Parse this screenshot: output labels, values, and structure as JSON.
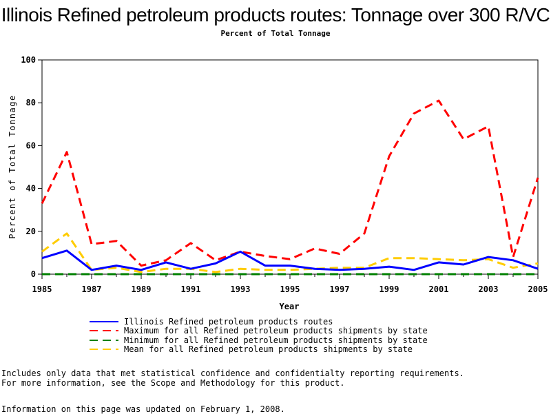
{
  "chart_data": {
    "type": "line",
    "title": "Illinois Refined petroleum products routes: Tonnage over 300 R/VC",
    "subtitle": "Percent of Total Tonnage",
    "xlabel": "Year",
    "ylabel": "Percent of Total Tonnage",
    "xlim": [
      1985,
      2005
    ],
    "ylim": [
      0,
      100
    ],
    "x_ticks": [
      1985,
      1987,
      1989,
      1991,
      1993,
      1995,
      1997,
      1999,
      2001,
      2003,
      2005
    ],
    "y_ticks": [
      0,
      20,
      40,
      60,
      80,
      100
    ],
    "grid": false,
    "legend_position": "bottom",
    "x": [
      1985,
      1986,
      1987,
      1988,
      1989,
      1990,
      1991,
      1992,
      1993,
      1994,
      1995,
      1996,
      1997,
      1998,
      1999,
      2000,
      2001,
      2002,
      2003,
      2004,
      2005
    ],
    "series": [
      {
        "name": "Illinois Refined petroleum products routes",
        "color": "#0000ff",
        "style": "solid",
        "values": [
          7.5,
          11,
          2,
          4,
          2,
          5.5,
          2.5,
          5,
          10.5,
          4,
          4,
          2.5,
          2,
          2.5,
          3.5,
          2,
          5.5,
          4.5,
          8,
          6.5,
          2.5
        ]
      },
      {
        "name": "Maximum for all Refined petroleum products shipments by state",
        "color": "#ff0000",
        "style": "dashed",
        "values": [
          33,
          57,
          14,
          15.5,
          4,
          6.5,
          14.5,
          6.5,
          10.5,
          8.5,
          7,
          12,
          9.5,
          19,
          55,
          75,
          81,
          63,
          69,
          8,
          45
        ]
      },
      {
        "name": "Minimum for all Refined petroleum products shipments by state",
        "color": "#008000",
        "style": "dashed",
        "values": [
          0,
          0,
          0,
          0,
          0,
          0,
          0,
          0,
          0,
          0,
          0,
          0,
          0,
          0,
          0,
          0,
          0,
          0,
          0,
          0,
          0
        ]
      },
      {
        "name": "Mean for all Refined petroleum products shipments by state",
        "color": "#ffcc00",
        "style": "dashed",
        "values": [
          10.5,
          19,
          2,
          3,
          1,
          2.5,
          2.5,
          1,
          2.5,
          2,
          2,
          2.5,
          3,
          3,
          7.5,
          7.5,
          7,
          6.5,
          7,
          3,
          5
        ]
      }
    ]
  },
  "footnotes": {
    "line1": "Includes only data that met statistical confidence and confidentialty reporting requirements.",
    "line2": "For more information, see the Scope and Methodology for this product.",
    "line3": "Information on this page was updated on February 1, 2008."
  }
}
